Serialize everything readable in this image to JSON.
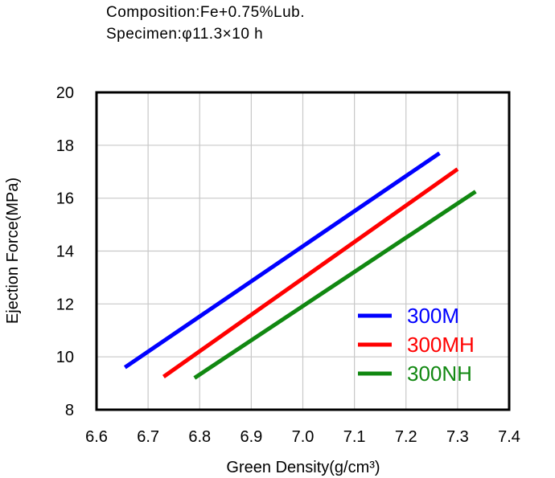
{
  "header": {
    "composition": "Composition:Fe+0.75%Lub.",
    "specimen": "Specimen:φ11.3×10 h"
  },
  "chart_data": {
    "type": "line",
    "title": "",
    "xlabel": "Green Density(g/cm³)",
    "ylabel": "Ejection Force(MPa)",
    "xlim": [
      6.6,
      7.4
    ],
    "ylim": [
      8,
      20
    ],
    "x_ticks": [
      "6.6",
      "6.7",
      "6.8",
      "6.9",
      "7.0",
      "7.1",
      "7.2",
      "7.3",
      "7.4"
    ],
    "y_ticks": [
      "8",
      "10",
      "12",
      "14",
      "16",
      "18",
      "20"
    ],
    "grid": true,
    "legend_position": "bottom-right",
    "series": [
      {
        "name": "300M",
        "color": "#0000ff",
        "x": [
          6.655,
          7.265
        ],
        "y": [
          9.6,
          17.7
        ]
      },
      {
        "name": "300MH",
        "color": "#ff0000",
        "x": [
          6.73,
          7.3
        ],
        "y": [
          9.25,
          17.1
        ]
      },
      {
        "name": "300NH",
        "color": "#118811",
        "x": [
          6.79,
          7.335
        ],
        "y": [
          9.2,
          16.25
        ]
      }
    ]
  }
}
